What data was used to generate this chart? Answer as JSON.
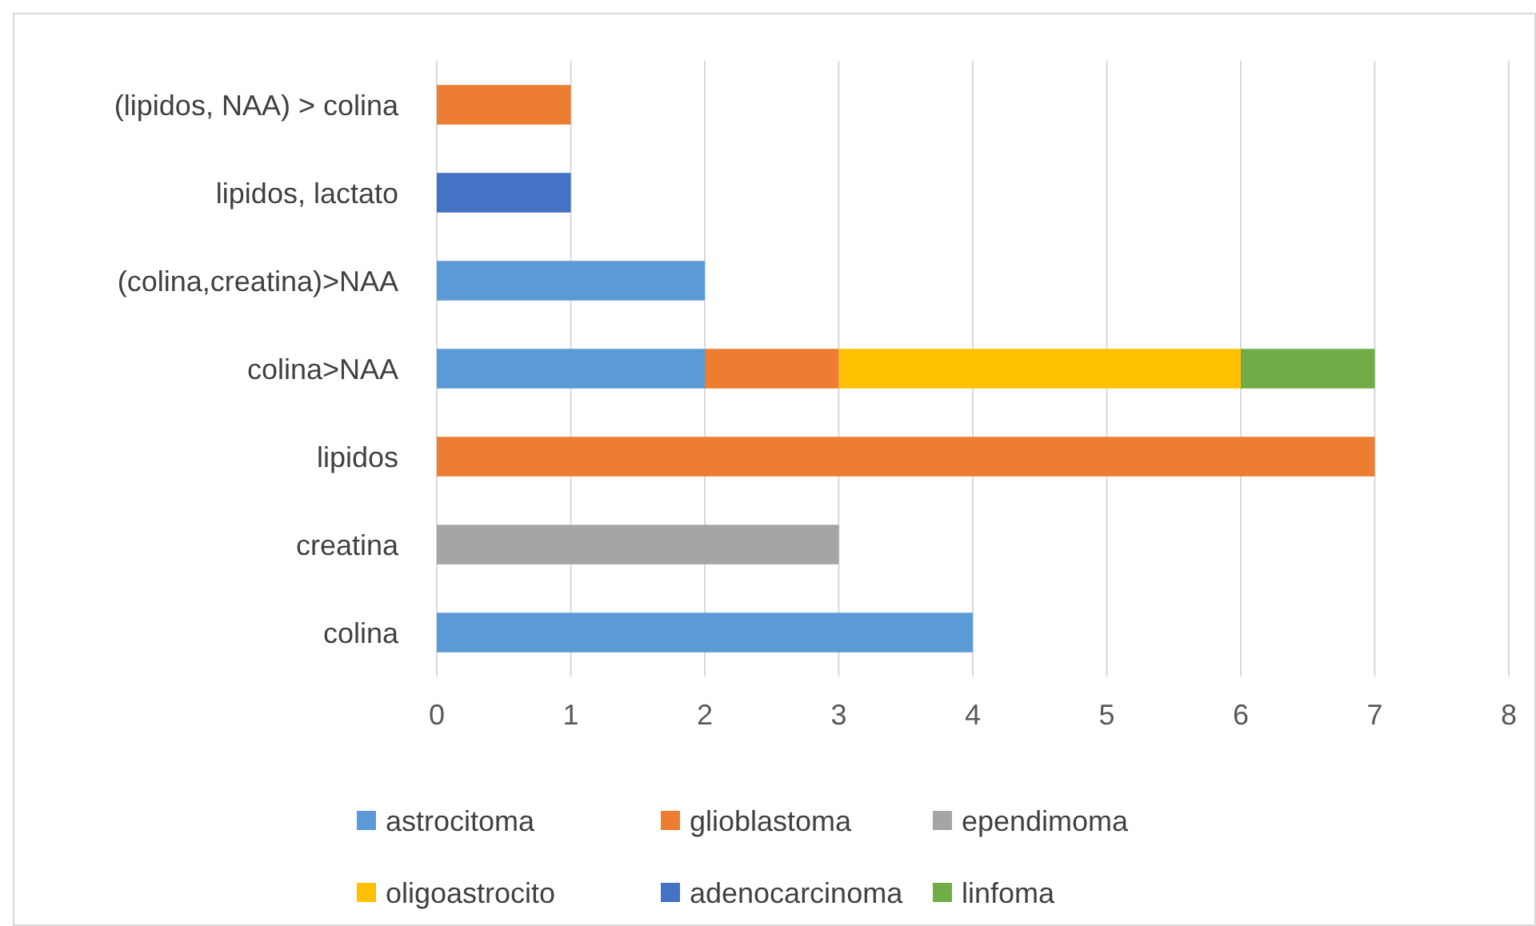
{
  "chart_data": {
    "type": "bar",
    "orientation": "horizontal",
    "stacked": true,
    "categories": [
      "(lipidos, NAA) > colina",
      "lipidos, lactato",
      "(colina,creatina)>NAA",
      "colina>NAA",
      "lipidos",
      "creatina",
      "colina"
    ],
    "series": [
      {
        "name": "astrocitoma",
        "color": "#5b9bd5",
        "values": [
          null,
          null,
          2,
          2,
          null,
          null,
          4
        ]
      },
      {
        "name": "glioblastoma",
        "color": "#ed7d31",
        "values": [
          1,
          null,
          null,
          1,
          7,
          null,
          null
        ]
      },
      {
        "name": "ependimoma",
        "color": "#a5a5a5",
        "values": [
          null,
          null,
          null,
          null,
          null,
          3,
          null
        ]
      },
      {
        "name": "oligoastrocito",
        "color": "#ffc000",
        "values": [
          null,
          null,
          null,
          3,
          null,
          null,
          null
        ]
      },
      {
        "name": "adenocarcinoma",
        "color": "#4472c4",
        "values": [
          null,
          1,
          null,
          null,
          null,
          null,
          null
        ]
      },
      {
        "name": "linfoma",
        "color": "#70ad47",
        "values": [
          null,
          null,
          null,
          1,
          null,
          null,
          null
        ]
      }
    ],
    "xlim": [
      0,
      8
    ],
    "xticks": [
      0,
      1,
      2,
      3,
      4,
      5,
      6,
      7,
      8
    ],
    "grid": "x",
    "legend": "bottom"
  }
}
